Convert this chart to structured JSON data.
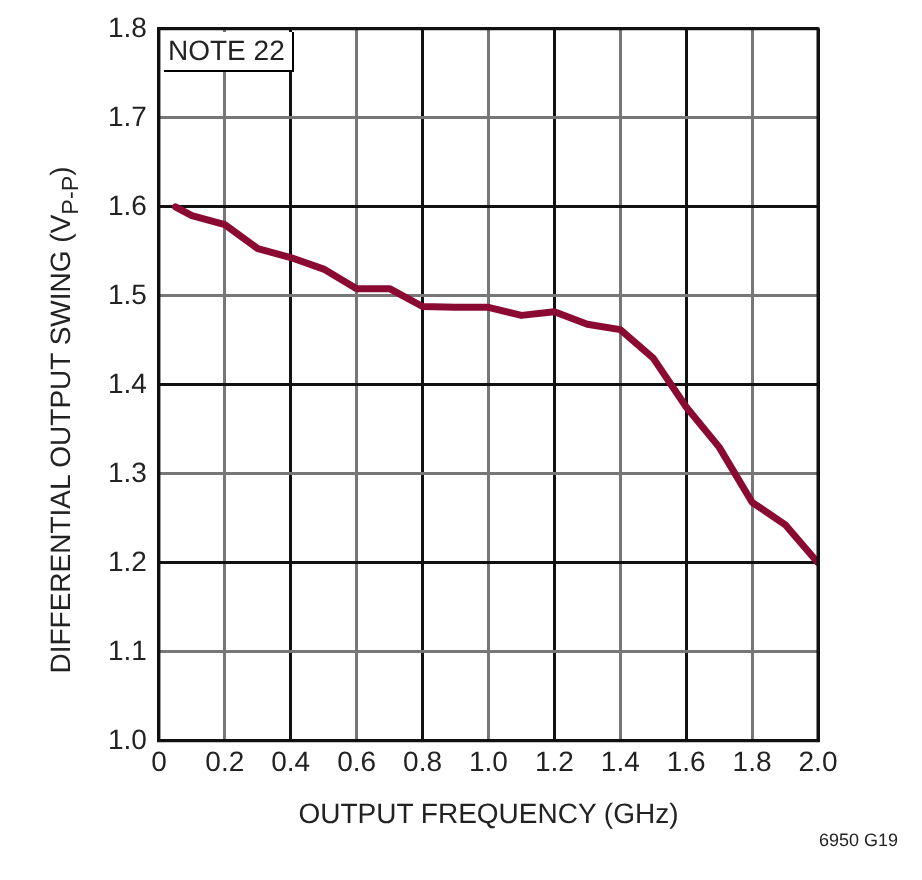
{
  "chart_data": {
    "type": "line",
    "xlabel": "OUTPUT FREQUENCY (GHz)",
    "ylabel": "DIFFERENTIAL OUTPUT SWING (V$_{P-P}$)",
    "annotations": [
      "NOTE 22",
      "6950 G19"
    ],
    "x": [
      0.05,
      0.1,
      0.2,
      0.3,
      0.4,
      0.5,
      0.6,
      0.7,
      0.8,
      0.9,
      1.0,
      1.1,
      1.2,
      1.3,
      1.4,
      1.5,
      1.6,
      1.7,
      1.8,
      1.9,
      2.0
    ],
    "series": [
      {
        "color": "#8b0a32",
        "values": [
          1.6,
          1.59,
          1.58,
          1.553,
          1.543,
          1.53,
          1.508,
          1.508,
          1.488,
          1.487,
          1.487,
          1.478,
          1.482,
          1.468,
          1.462,
          1.43,
          1.375,
          1.33,
          1.268,
          1.243,
          1.2
        ]
      }
    ],
    "xlim": [
      0,
      2
    ],
    "xticks": [
      0,
      0.2,
      0.4,
      0.6,
      0.8,
      {
        "value": 1,
        "label": "1.0"
      },
      1.2,
      1.4,
      1.6,
      1.8,
      {
        "value": 2,
        "label": "2.0"
      }
    ],
    "ylim": [
      1,
      1.8
    ],
    "yticks": [
      {
        "value": 1,
        "label": "1.0"
      },
      1.1,
      1.2,
      1.3,
      1.4,
      1.5,
      1.6,
      1.7,
      1.8
    ],
    "grid": true,
    "marker": "none",
    "line_style": "solid"
  }
}
